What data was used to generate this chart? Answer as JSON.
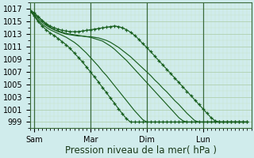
{
  "bg_color": "#d0ecec",
  "grid_major_color": "#b0d0b0",
  "grid_minor_color": "#c8e4c8",
  "line_color": "#1a6020",
  "xlabel": "Pression niveau de la mer( hPa )",
  "xlabel_fontsize": 8.5,
  "tick_fontsize": 7,
  "ylim": [
    998.0,
    1018.0
  ],
  "yticks": [
    999,
    1001,
    1003,
    1005,
    1007,
    1009,
    1011,
    1013,
    1015,
    1017
  ],
  "xlim": [
    0,
    55
  ],
  "xtick_positions": [
    1,
    15,
    29,
    43
  ],
  "xtick_labels": [
    "Sam",
    "Mar",
    "Dim",
    "Lun"
  ],
  "vline_positions": [
    1,
    15,
    29,
    43
  ],
  "series": [
    {
      "values": [
        1016.8,
        1016.4,
        1015.8,
        1015.2,
        1014.7,
        1014.3,
        1014.0,
        1013.8,
        1013.6,
        1013.5,
        1013.4,
        1013.4,
        1013.4,
        1013.5,
        1013.6,
        1013.7,
        1013.8,
        1013.9,
        1014.0,
        1014.1,
        1014.2,
        1014.3,
        1014.2,
        1014.0,
        1013.7,
        1013.3,
        1012.8,
        1012.2,
        1011.5,
        1010.9,
        1010.2,
        1009.5,
        1008.8,
        1008.1,
        1007.4,
        1006.7,
        1006.0,
        1005.3,
        1004.6,
        1003.9,
        1003.2,
        1002.5,
        1001.8,
        1001.1,
        1000.4,
        999.7,
        999.2,
        999.0,
        999.0,
        999.0,
        999.0,
        999.0,
        999.0,
        999.0,
        999.0
      ],
      "marker": true
    },
    {
      "values": [
        1016.8,
        1016.4,
        1015.8,
        1015.2,
        1014.6,
        1014.1,
        1013.7,
        1013.4,
        1013.2,
        1013.0,
        1012.9,
        1012.8,
        1012.7,
        1012.7,
        1012.6,
        1012.6,
        1012.5,
        1012.4,
        1012.2,
        1012.0,
        1011.7,
        1011.3,
        1010.9,
        1010.4,
        1009.9,
        1009.4,
        1008.8,
        1008.2,
        1007.6,
        1007.0,
        1006.4,
        1005.7,
        1005.1,
        1004.4,
        1003.8,
        1003.1,
        1002.4,
        1001.8,
        1001.1,
        1000.4,
        999.8,
        999.2,
        999.0,
        999.0,
        999.0,
        999.0,
        999.0,
        999.0,
        999.0,
        999.0,
        999.0,
        999.0,
        999.0,
        999.0,
        999.0
      ],
      "marker": false
    },
    {
      "values": [
        1016.7,
        1016.2,
        1015.5,
        1014.9,
        1014.4,
        1014.0,
        1013.7,
        1013.5,
        1013.3,
        1013.1,
        1013.0,
        1012.9,
        1012.8,
        1012.7,
        1012.6,
        1012.5,
        1012.3,
        1012.1,
        1011.9,
        1011.5,
        1011.1,
        1010.6,
        1010.0,
        1009.4,
        1008.8,
        1008.1,
        1007.4,
        1006.7,
        1006.0,
        1005.3,
        1004.6,
        1003.9,
        1003.2,
        1002.5,
        1001.8,
        1001.1,
        1000.4,
        999.7,
        999.2,
        999.0,
        999.0,
        999.0,
        999.0,
        999.0,
        999.0,
        999.0,
        999.0,
        999.0,
        999.0,
        999.0,
        999.0,
        999.0,
        999.0,
        999.0,
        999.0
      ],
      "marker": false
    },
    {
      "values": [
        1016.7,
        1016.0,
        1015.2,
        1014.6,
        1014.1,
        1013.7,
        1013.4,
        1013.1,
        1012.8,
        1012.5,
        1012.1,
        1011.7,
        1011.2,
        1010.6,
        1010.0,
        1009.3,
        1008.6,
        1007.9,
        1007.1,
        1006.4,
        1005.6,
        1004.8,
        1004.0,
        1003.2,
        1002.4,
        1001.6,
        1000.8,
        1000.1,
        999.4,
        999.0,
        999.0,
        999.0,
        999.0,
        999.0,
        999.0,
        999.0,
        999.0,
        999.0,
        999.0,
        999.0,
        999.0,
        999.0,
        999.0,
        999.0,
        999.0,
        999.0,
        999.0,
        999.0,
        999.0,
        999.0,
        999.0,
        999.0,
        999.0,
        999.0,
        999.0
      ],
      "marker": false
    },
    {
      "values": [
        1016.7,
        1015.9,
        1015.0,
        1014.3,
        1013.7,
        1013.2,
        1012.8,
        1012.3,
        1011.8,
        1011.3,
        1010.7,
        1010.0,
        1009.3,
        1008.6,
        1007.8,
        1007.0,
        1006.2,
        1005.4,
        1004.5,
        1003.7,
        1002.8,
        1002.0,
        1001.1,
        1000.3,
        999.5,
        999.0,
        999.0,
        999.0,
        999.0,
        999.0,
        999.0,
        999.0,
        999.0,
        999.0,
        999.0,
        999.0,
        999.0,
        999.0,
        999.0,
        999.0,
        999.0,
        999.0,
        999.0,
        999.0,
        999.0,
        999.0,
        999.0,
        999.0,
        999.0,
        999.0,
        999.0,
        999.0,
        999.0,
        999.0,
        999.0
      ],
      "marker": true
    }
  ]
}
